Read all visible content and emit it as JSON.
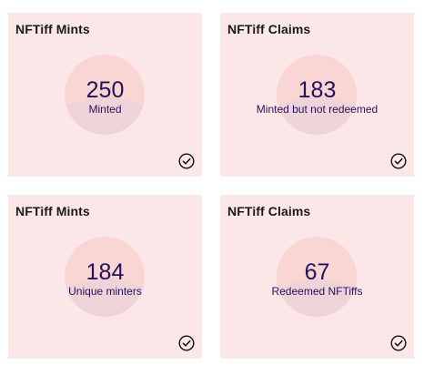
{
  "cards": [
    {
      "title": "NFTiff Mints",
      "value": "250",
      "label": "Minted",
      "status_icon": "check-circle-icon"
    },
    {
      "title": "NFTiff Claims",
      "value": "183",
      "label": "Minted but not redeemed",
      "status_icon": "check-circle-icon"
    },
    {
      "title": "NFTiff Mints",
      "value": "184",
      "label": "Unique minters",
      "status_icon": "check-circle-icon"
    },
    {
      "title": "NFTiff Claims",
      "value": "67",
      "label": "Redeemed NFTiffs",
      "status_icon": "check-circle-icon"
    }
  ],
  "colors": {
    "card_background": "#fce7e8",
    "donut_primary": "#f9d6d3",
    "donut_secondary": "#eed4d8",
    "metric_text": "#24115c",
    "title_text": "#1a1a1a"
  }
}
